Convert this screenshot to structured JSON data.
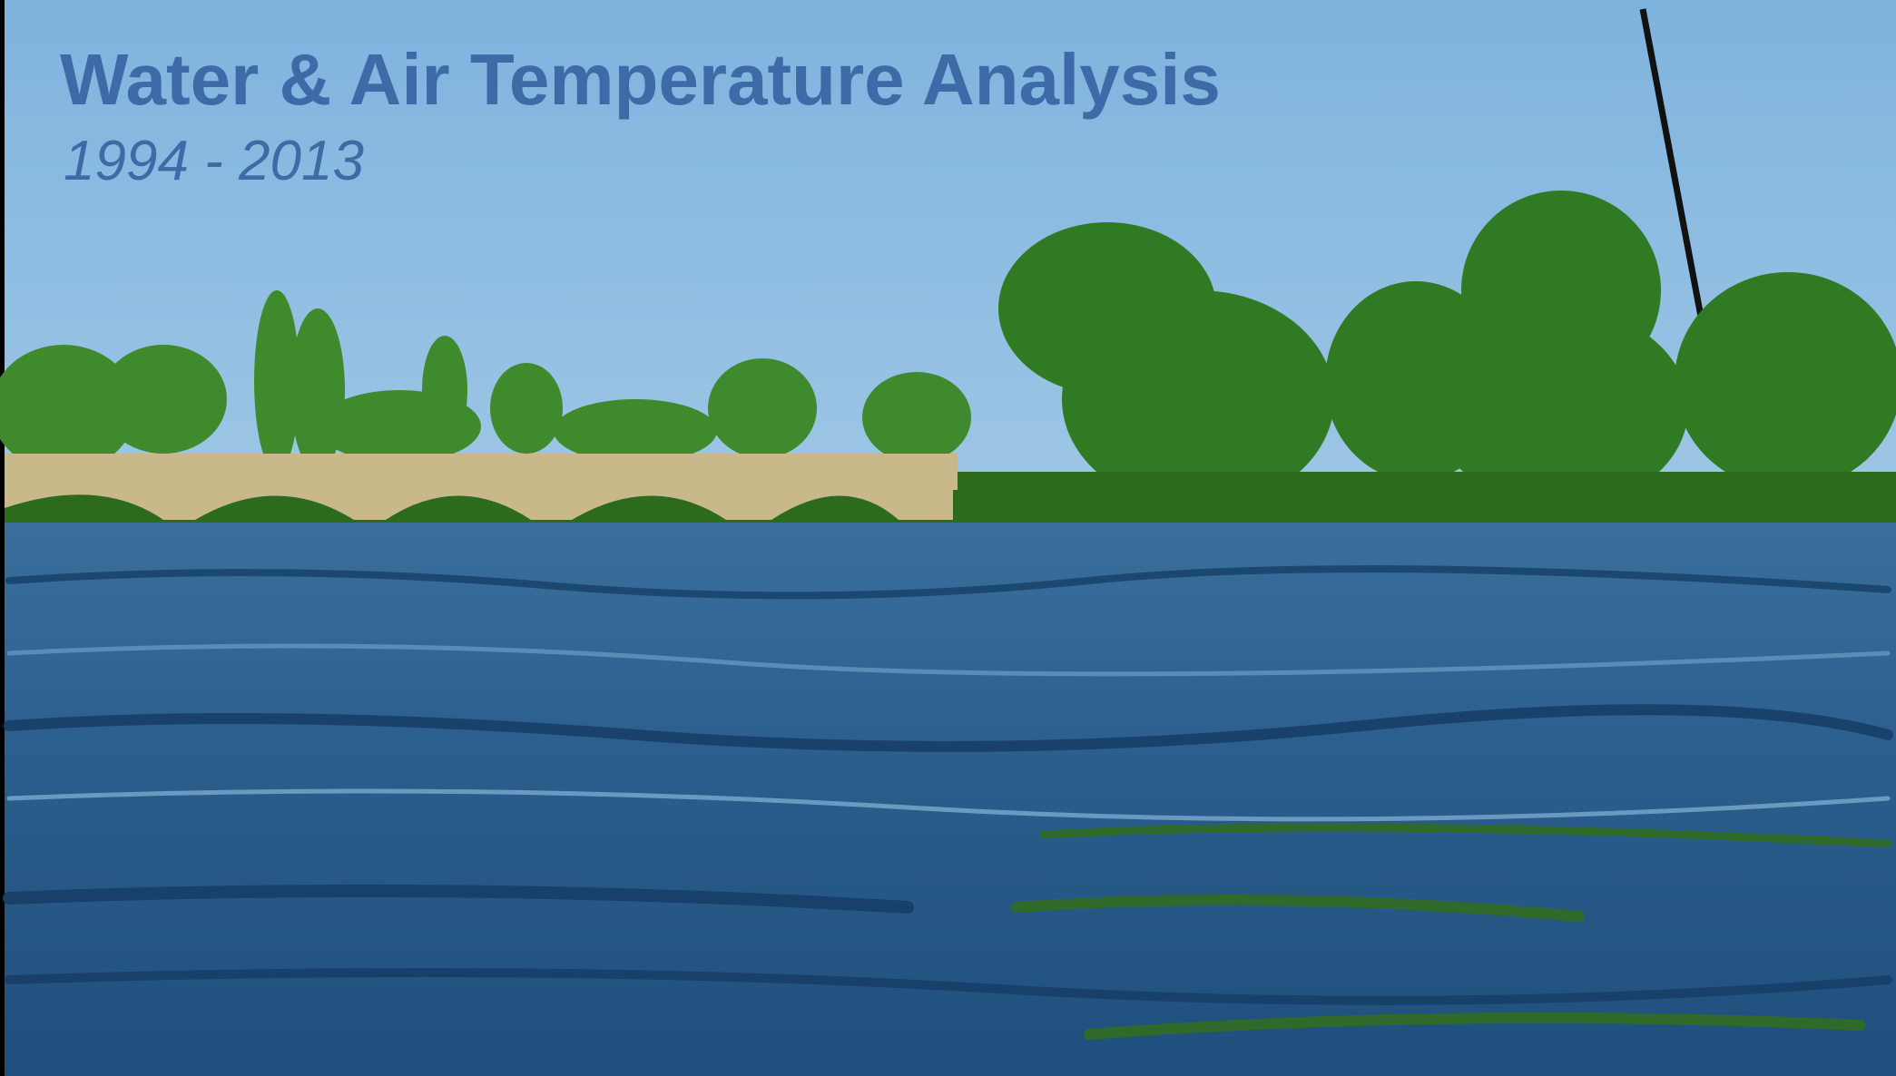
{
  "title": "Water & Air Temperature Analysis",
  "subtitle": "1994 - 2013"
}
